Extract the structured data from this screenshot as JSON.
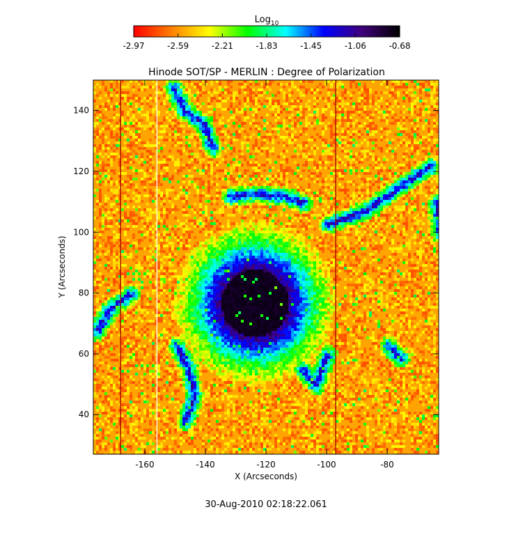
{
  "chart_data": {
    "type": "heatmap",
    "title": "Hinode SOT/SP - MERLIN : Degree of Polarization",
    "xlabel": "X (Arcseconds)",
    "ylabel": "Y (Arcseconds)",
    "xlim": [
      -177,
      -63
    ],
    "ylim": [
      27,
      150
    ],
    "xticks": [
      -160,
      -140,
      -120,
      -100,
      -80
    ],
    "yticks": [
      40,
      60,
      80,
      100,
      120,
      140
    ],
    "footer": "30-Aug-2010 02:18:22.061",
    "colorbar": {
      "label_main": "Log",
      "label_sub": "10",
      "ticks": [
        "-2.97",
        "-2.59",
        "-2.21",
        "-1.83",
        "-1.45",
        "-1.06",
        "-0.68"
      ],
      "range": [
        -2.97,
        -0.68
      ],
      "colors": [
        "#ff0000",
        "#ff8000",
        "#ffff00",
        "#00ff00",
        "#00ffff",
        "#0000ff",
        "#40007a",
        "#000000"
      ]
    },
    "features": {
      "background_level": -2.55,
      "sunspot_center": [
        -124,
        77
      ],
      "sunspot_umbra_radius": 11,
      "sunspot_penumbra_radius": 20,
      "bad_columns_x": [
        -168,
        -156,
        -97
      ]
    }
  }
}
